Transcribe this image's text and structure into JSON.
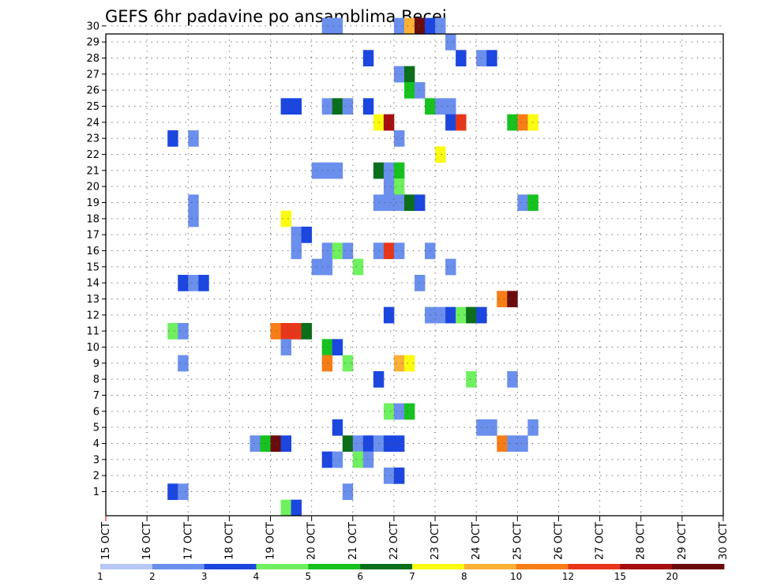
{
  "chart_data": {
    "type": "heatmap",
    "title": "GEFS 6hr padavine po ansamblima Becej",
    "y_ticks": [
      "1",
      "2",
      "3",
      "4",
      "5",
      "6",
      "7",
      "8",
      "9",
      "10",
      "11",
      "12",
      "13",
      "14",
      "15",
      "16",
      "17",
      "18",
      "19",
      "20",
      "21",
      "22",
      "23",
      "24",
      "25",
      "26",
      "27",
      "28",
      "29",
      "30"
    ],
    "x_ticks": [
      "15 OCT",
      "16 OCT",
      "17 OCT",
      "18 OCT",
      "19 OCT",
      "20 OCT",
      "21 OCT",
      "22 OCT",
      "23 OCT",
      "24 OCT",
      "25 OCT",
      "26 OCT",
      "27 OCT",
      "28 OCT",
      "29 OCT",
      "30 OCT"
    ],
    "x_units": "6-hour steps after 15 OCT 00Z (4 steps per day)",
    "grid": true,
    "legend": {
      "position": "bottom",
      "colors": [
        "#b7c8f7",
        "#6b8fed",
        "#1c46e0",
        "#6ff05e",
        "#17c21f",
        "#0a6e1b",
        "#fbfb11",
        "#fbb136",
        "#f77d17",
        "#e8361a",
        "#a50f10",
        "#6b0c0c"
      ],
      "labels": [
        "1",
        "2",
        "3",
        "4",
        "5",
        "6",
        "7",
        "8",
        "10",
        "12",
        "15",
        "20"
      ]
    },
    "cells": [
      [
        21,
        30,
        1
      ],
      [
        22,
        30,
        1
      ],
      [
        28,
        30,
        1
      ],
      [
        29,
        30,
        7
      ],
      [
        30,
        30,
        11
      ],
      [
        31,
        30,
        2
      ],
      [
        32,
        30,
        1
      ],
      [
        33,
        29,
        1
      ],
      [
        25,
        28,
        2
      ],
      [
        34,
        28,
        2
      ],
      [
        36,
        28,
        1
      ],
      [
        37,
        28,
        2
      ],
      [
        28,
        27,
        1
      ],
      [
        29,
        27,
        5
      ],
      [
        29,
        26,
        4
      ],
      [
        30,
        26,
        1
      ],
      [
        17,
        25,
        2
      ],
      [
        18,
        25,
        2
      ],
      [
        21,
        25,
        1
      ],
      [
        22,
        25,
        5
      ],
      [
        23,
        25,
        1
      ],
      [
        25,
        25,
        2
      ],
      [
        31,
        25,
        4
      ],
      [
        32,
        25,
        1
      ],
      [
        33,
        25,
        1
      ],
      [
        26,
        24,
        6
      ],
      [
        27,
        24,
        10
      ],
      [
        33,
        24,
        2
      ],
      [
        34,
        24,
        9
      ],
      [
        39,
        24,
        4
      ],
      [
        40,
        24,
        8
      ],
      [
        41,
        24,
        6
      ],
      [
        6,
        23,
        2
      ],
      [
        8,
        23,
        1
      ],
      [
        28,
        23,
        1
      ],
      [
        32,
        22,
        6
      ],
      [
        20,
        21,
        1
      ],
      [
        21,
        21,
        1
      ],
      [
        22,
        21,
        1
      ],
      [
        26,
        21,
        5
      ],
      [
        27,
        21,
        1
      ],
      [
        28,
        21,
        4
      ],
      [
        27,
        20,
        1
      ],
      [
        28,
        20,
        3
      ],
      [
        8,
        19,
        1
      ],
      [
        26,
        19,
        1
      ],
      [
        27,
        19,
        1
      ],
      [
        28,
        19,
        1
      ],
      [
        29,
        19,
        5
      ],
      [
        30,
        19,
        2
      ],
      [
        40,
        19,
        1
      ],
      [
        41,
        19,
        4
      ],
      [
        8,
        18,
        1
      ],
      [
        17,
        18,
        6
      ],
      [
        18,
        17,
        1
      ],
      [
        19,
        17,
        2
      ],
      [
        18,
        16,
        1
      ],
      [
        21,
        16,
        1
      ],
      [
        22,
        16,
        3
      ],
      [
        23,
        16,
        1
      ],
      [
        26,
        16,
        1
      ],
      [
        27,
        16,
        9
      ],
      [
        28,
        16,
        1
      ],
      [
        31,
        16,
        1
      ],
      [
        20,
        15,
        1
      ],
      [
        21,
        15,
        1
      ],
      [
        24,
        15,
        3
      ],
      [
        33,
        15,
        1
      ],
      [
        7,
        14,
        2
      ],
      [
        8,
        14,
        1
      ],
      [
        9,
        14,
        2
      ],
      [
        30,
        14,
        1
      ],
      [
        38,
        13,
        8
      ],
      [
        39,
        13,
        11
      ],
      [
        27,
        12,
        2
      ],
      [
        31,
        12,
        1
      ],
      [
        32,
        12,
        1
      ],
      [
        33,
        12,
        2
      ],
      [
        34,
        12,
        3
      ],
      [
        35,
        12,
        5
      ],
      [
        36,
        12,
        2
      ],
      [
        6,
        11,
        3
      ],
      [
        7,
        11,
        1
      ],
      [
        16,
        11,
        8
      ],
      [
        17,
        11,
        9
      ],
      [
        18,
        11,
        9
      ],
      [
        19,
        11,
        5
      ],
      [
        17,
        10,
        1
      ],
      [
        21,
        10,
        4
      ],
      [
        22,
        10,
        2
      ],
      [
        7,
        9,
        1
      ],
      [
        21,
        9,
        8
      ],
      [
        23,
        9,
        3
      ],
      [
        28,
        9,
        7
      ],
      [
        29,
        9,
        6
      ],
      [
        26,
        8,
        2
      ],
      [
        35,
        8,
        3
      ],
      [
        39,
        8,
        1
      ],
      [
        27,
        6,
        3
      ],
      [
        28,
        6,
        1
      ],
      [
        29,
        6,
        4
      ],
      [
        22,
        5,
        2
      ],
      [
        36,
        5,
        1
      ],
      [
        37,
        5,
        1
      ],
      [
        41,
        5,
        1
      ],
      [
        14,
        4,
        1
      ],
      [
        15,
        4,
        4
      ],
      [
        16,
        4,
        11
      ],
      [
        17,
        4,
        2
      ],
      [
        23,
        4,
        5
      ],
      [
        24,
        4,
        1
      ],
      [
        25,
        4,
        2
      ],
      [
        26,
        4,
        1
      ],
      [
        27,
        4,
        2
      ],
      [
        28,
        4,
        2
      ],
      [
        38,
        4,
        8
      ],
      [
        39,
        4,
        1
      ],
      [
        40,
        4,
        1
      ],
      [
        21,
        3,
        2
      ],
      [
        22,
        3,
        1
      ],
      [
        24,
        3,
        3
      ],
      [
        25,
        3,
        1
      ],
      [
        27,
        2,
        1
      ],
      [
        28,
        2,
        2
      ],
      [
        6,
        1,
        2
      ],
      [
        7,
        1,
        1
      ],
      [
        23,
        1,
        1
      ],
      [
        17,
        0,
        3
      ],
      [
        18,
        0,
        2
      ]
    ]
  }
}
